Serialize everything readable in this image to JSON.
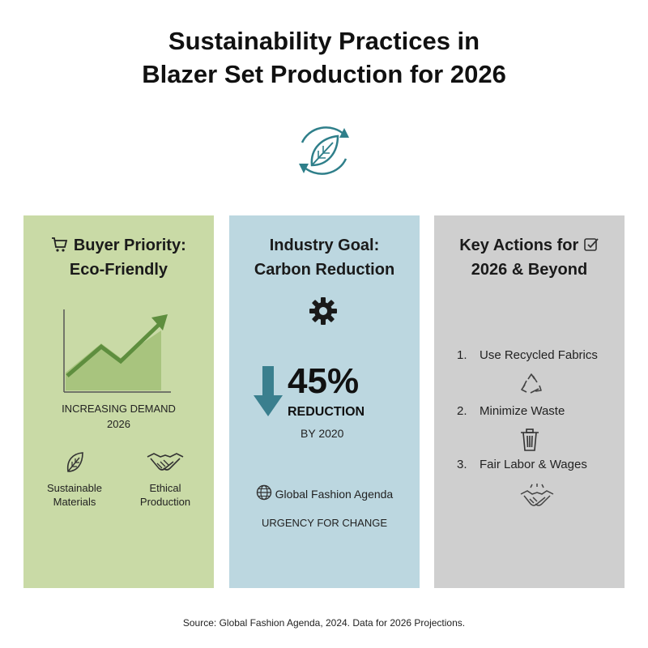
{
  "title": {
    "line1": "Sustainability Practices in",
    "line2": "Blazer Set Production for 2026"
  },
  "icons": {
    "hero": "recycle-leaf-icon",
    "cart": "shopping-cart-icon",
    "checkbox": "checkbox-icon",
    "gear": "gear-icon",
    "arrow": "arrow-down-icon",
    "globe": "globe-icon",
    "leaf": "leaf-icon",
    "handshake": "handshake-icon",
    "recycle": "recycle-icon",
    "trash": "trash-icon"
  },
  "colors": {
    "panel1": "#c9daa6",
    "panel2": "#bcd7e0",
    "panel3": "#cfcfcf",
    "accent_green": "#5e8e3e",
    "accent_teal": "#2f7f8a"
  },
  "panels": {
    "buyer": {
      "title_line1": "Buyer Priority:",
      "title_line2": "Eco-Friendly",
      "chart_label_line1": "INCREASING DEMAND",
      "chart_label_line2": "2026",
      "features": [
        {
          "line1": "Sustainable",
          "line2": "Materials"
        },
        {
          "line1": "Ethical",
          "line2": "Production"
        }
      ]
    },
    "industry": {
      "title_line1": "Industry Goal:",
      "title_line2": "Carbon Reduction",
      "percent": "45%",
      "reduction": "REDUCTION",
      "by": "BY 2020",
      "agenda": "Global Fashion Agenda",
      "urgency": "URGENCY FOR CHANGE"
    },
    "actions": {
      "title_line1": "Key Actions for",
      "title_line2": "2026 & Beyond",
      "items": [
        {
          "num": "1.",
          "label": "Use Recycled Fabrics"
        },
        {
          "num": "2.",
          "label": "Minimize Waste"
        },
        {
          "num": "3.",
          "label": "Fair Labor & Wages"
        }
      ]
    }
  },
  "source": "Source: Global Fashion Agenda, 2024. Data for 2026 Projections."
}
